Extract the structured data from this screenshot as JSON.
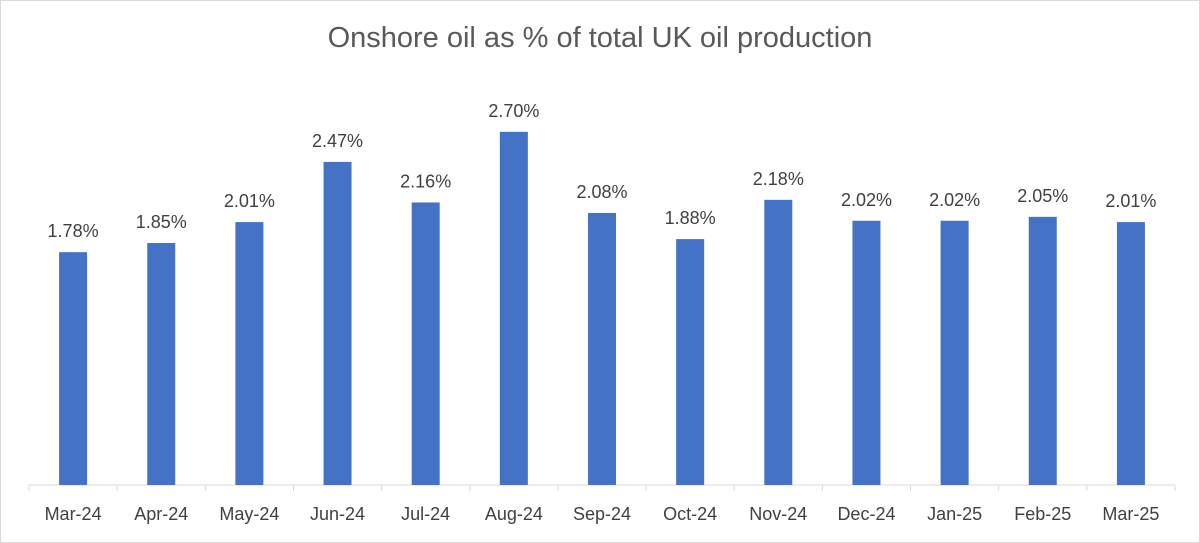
{
  "chart_data": {
    "type": "bar",
    "title": "Onshore oil as % of total UK oil production",
    "categories": [
      "Mar-24",
      "Apr-24",
      "May-24",
      "Jun-24",
      "Jul-24",
      "Aug-24",
      "Sep-24",
      "Oct-24",
      "Nov-24",
      "Dec-24",
      "Jan-25",
      "Feb-25",
      "Mar-25"
    ],
    "values": [
      1.78,
      1.85,
      2.01,
      2.47,
      2.16,
      2.7,
      2.08,
      1.88,
      2.18,
      2.02,
      2.02,
      2.05,
      2.01
    ],
    "data_labels": [
      "1.78%",
      "1.85%",
      "2.01%",
      "2.47%",
      "2.16%",
      "2.70%",
      "2.08%",
      "1.88%",
      "2.18%",
      "2.02%",
      "2.02%",
      "2.05%",
      "2.01%"
    ],
    "ylim": [
      0,
      3.0
    ],
    "grid": false,
    "legend": "none",
    "bar_color": "#4472C4",
    "axis_color": "#d9d9d9"
  }
}
